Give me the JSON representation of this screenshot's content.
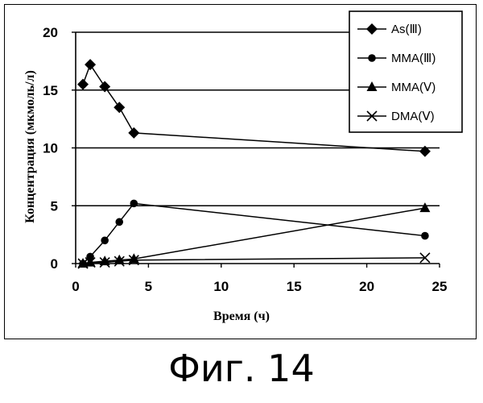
{
  "caption": "Фиг. 14",
  "chart_data": {
    "type": "line",
    "xlabel": "Время (ч)",
    "ylabel": "Концентрация (мкмоль/л)",
    "xlim": [
      0,
      25
    ],
    "ylim": [
      0,
      20
    ],
    "xticks": [
      0,
      5,
      10,
      15,
      20,
      25
    ],
    "yticks": [
      0,
      5,
      10,
      15,
      20
    ],
    "grid": "horizontal",
    "legend_position": "top-right",
    "series": [
      {
        "name": "As(Ⅲ)",
        "marker": "diamond",
        "x": [
          0.5,
          1,
          2,
          3,
          4,
          24
        ],
        "y": [
          15.5,
          17.2,
          15.3,
          13.5,
          11.3,
          9.7
        ]
      },
      {
        "name": "MMA(Ⅲ)",
        "marker": "circle",
        "x": [
          0.5,
          1,
          2,
          3,
          4,
          24
        ],
        "y": [
          0,
          0.6,
          2.0,
          3.6,
          5.2,
          2.4
        ]
      },
      {
        "name": "MMA(Ⅴ)",
        "marker": "triangle",
        "x": [
          0.5,
          1,
          2,
          3,
          4,
          24
        ],
        "y": [
          0,
          0.1,
          0.2,
          0.3,
          0.4,
          4.8
        ]
      },
      {
        "name": "DMA(Ⅴ)",
        "marker": "x",
        "x": [
          0.5,
          1,
          2,
          3,
          4,
          24
        ],
        "y": [
          0,
          0.1,
          0.1,
          0.2,
          0.3,
          0.5
        ]
      }
    ]
  }
}
